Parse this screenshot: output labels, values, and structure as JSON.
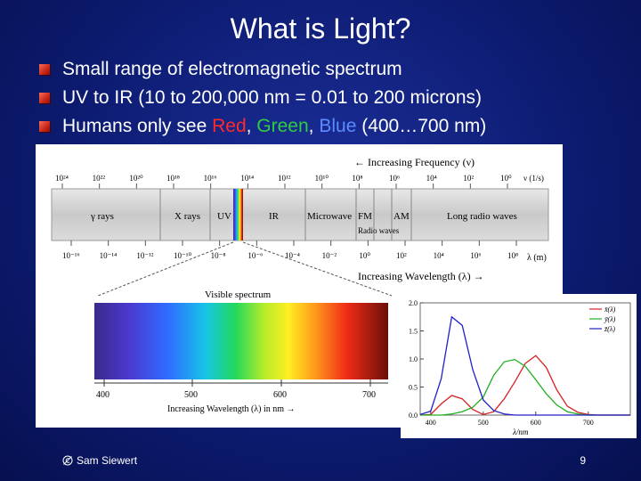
{
  "slide": {
    "title": "What is Light?",
    "bullets": {
      "b1": "Small range of electromagnetic spectrum",
      "b2": "UV to IR (10 to 200,000 nm = 0.01 to 200 microns)",
      "b3": {
        "prefix": "Humans only see ",
        "red": "Red",
        "sep1": ", ",
        "green": "Green",
        "sep2": ", ",
        "blue": "Blue",
        "suffix": " (400…700 nm)"
      }
    },
    "footer": {
      "author": "Sam Siewert",
      "page": "9"
    }
  },
  "spectrum_figure": {
    "freq_axis_label": "← Increasing Frequency (ν)",
    "freq_ticks": [
      "10²⁴",
      "10²²",
      "10²⁰",
      "10¹⁸",
      "10¹⁶",
      "10¹⁴",
      "10¹²",
      "10¹⁰",
      "10⁸",
      "10⁶",
      "10⁴",
      "10²",
      "10⁰"
    ],
    "freq_unit": "ν (1/s)",
    "bands": [
      "γ rays",
      "X rays",
      "UV",
      "IR",
      "Microwave",
      "FM",
      "AM",
      "Long radio waves"
    ],
    "radio_label": "Radio waves",
    "wl_ticks": [
      "10⁻¹⁶",
      "10⁻¹⁴",
      "10⁻¹²",
      "10⁻¹⁰",
      "10⁻⁸",
      "10⁻⁶",
      "10⁻⁴",
      "10⁻²",
      "10⁰",
      "10²",
      "10⁴",
      "10⁶",
      "10⁸"
    ],
    "wl_unit": "λ (m)",
    "wl_axis_label": "Increasing Wavelength (λ) →",
    "visible_label": "Visible spectrum",
    "visible_ticks": [
      "400",
      "500",
      "600",
      "700"
    ],
    "visible_axis_label": "Increasing Wavelength (λ) in nm →"
  },
  "chart_data": {
    "type": "line",
    "title": "",
    "xlabel": "λ/nm",
    "ylabel": "",
    "xlim": [
      380,
      780
    ],
    "ylim": [
      0,
      2.0
    ],
    "xticks": [
      400,
      500,
      600,
      700
    ],
    "yticks": [
      0.0,
      0.5,
      1.0,
      1.5,
      2.0
    ],
    "legend_position": "top-right",
    "x": [
      380,
      400,
      420,
      440,
      460,
      480,
      500,
      520,
      540,
      560,
      580,
      600,
      620,
      640,
      660,
      680,
      700,
      720,
      740,
      760,
      780
    ],
    "series": [
      {
        "name": "x̄(λ)",
        "color": "#d62020",
        "values": [
          0.0,
          0.01,
          0.2,
          0.35,
          0.29,
          0.1,
          0.01,
          0.06,
          0.29,
          0.59,
          0.92,
          1.06,
          0.85,
          0.45,
          0.16,
          0.05,
          0.01,
          0.0,
          0.0,
          0.0,
          0.0
        ]
      },
      {
        "name": "ȳ(λ)",
        "color": "#20b020",
        "values": [
          0.0,
          0.0,
          0.0,
          0.02,
          0.06,
          0.14,
          0.32,
          0.71,
          0.95,
          0.99,
          0.87,
          0.63,
          0.38,
          0.18,
          0.06,
          0.02,
          0.0,
          0.0,
          0.0,
          0.0,
          0.0
        ]
      },
      {
        "name": "z̄(λ)",
        "color": "#2020c8",
        "values": [
          0.01,
          0.07,
          0.65,
          1.75,
          1.6,
          0.81,
          0.27,
          0.08,
          0.02,
          0.0,
          0.0,
          0.0,
          0.0,
          0.0,
          0.0,
          0.0,
          0.0,
          0.0,
          0.0,
          0.0,
          0.0
        ]
      }
    ]
  }
}
